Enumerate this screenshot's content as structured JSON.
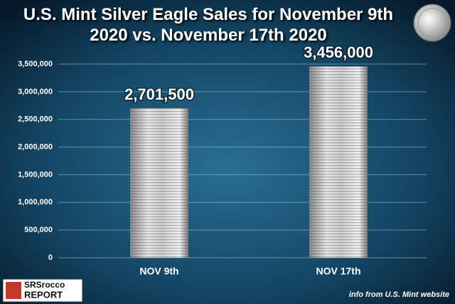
{
  "chart_data": {
    "type": "bar",
    "title": "U.S. Mint Silver Eagle Sales for November 9th 2020 vs. November 17th 2020",
    "categories": [
      "NOV 9th",
      "NOV 17th"
    ],
    "values": [
      2701500,
      3456000
    ],
    "value_labels": [
      "2,701,500",
      "3,456,000"
    ],
    "color": "#c8c8c8",
    "ylim": [
      0,
      3500000
    ],
    "yticks": [
      0,
      {
        "value": 500000,
        "label": "500,000"
      },
      {
        "value": 1000000,
        "label": "1,000,000"
      },
      {
        "value": 1500000,
        "label": "1,500,000"
      },
      {
        "value": 2000000,
        "label": "2,000,000"
      },
      {
        "value": 2500000,
        "label": "2,500,000"
      },
      {
        "value": 3000000,
        "label": "3,000,000"
      },
      {
        "value": 3500000,
        "label": "3,500,000"
      }
    ],
    "grid": true,
    "source": "info from U.S. Mint website",
    "logo": [
      "SRSrocco",
      "REPORT"
    ]
  }
}
